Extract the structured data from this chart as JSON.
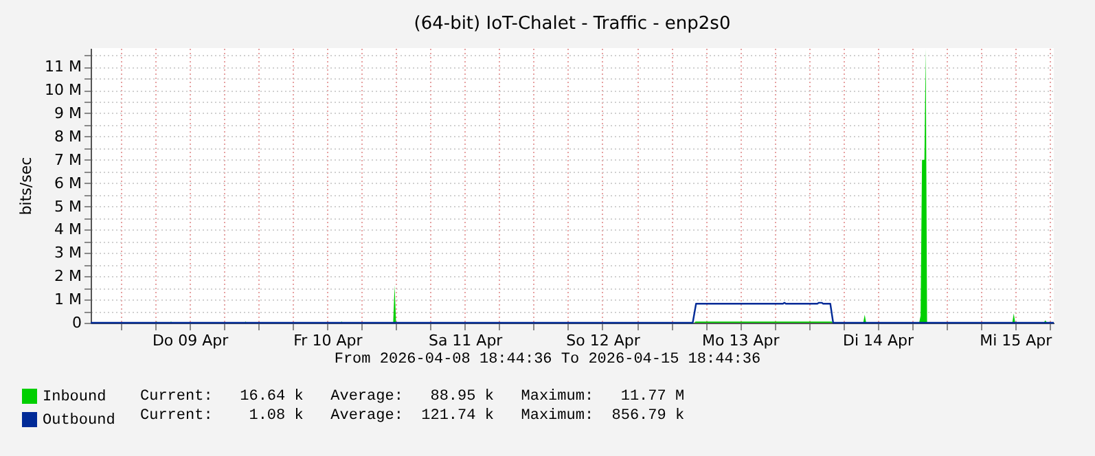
{
  "chart_data": {
    "type": "area",
    "title": "(64-bit)  IoT-Chalet - Traffic - enp2s0",
    "ylabel": "bits/sec",
    "annotations": [
      "From 2026-04-08 18:44:36 To 2026-04-15 18:44:36",
      "Current:   16.64 k   Average:   88.95 k   Maximum:   11.77 M",
      "Current:    1.08 k   Average:  121.74 k   Maximum:  856.79 k"
    ],
    "xlim": [
      "2026-04-08T18:44",
      "2026-04-15T18:44"
    ],
    "xticks": [
      {
        "value": "2026-04-09T00:00",
        "label": null
      },
      {
        "value": "2026-04-09T06:00",
        "label": null
      },
      {
        "value": "2026-04-09T12:00",
        "label": "Do 09 Apr"
      },
      {
        "value": "2026-04-09T18:00",
        "label": null
      },
      {
        "value": "2026-04-10T00:00",
        "label": null
      },
      {
        "value": "2026-04-10T06:00",
        "label": null
      },
      {
        "value": "2026-04-10T12:00",
        "label": "Fr 10 Apr"
      },
      {
        "value": "2026-04-10T18:00",
        "label": null
      },
      {
        "value": "2026-04-11T00:00",
        "label": null
      },
      {
        "value": "2026-04-11T06:00",
        "label": null
      },
      {
        "value": "2026-04-11T12:00",
        "label": "Sa 11 Apr"
      },
      {
        "value": "2026-04-11T18:00",
        "label": null
      },
      {
        "value": "2026-04-12T00:00",
        "label": null
      },
      {
        "value": "2026-04-12T06:00",
        "label": null
      },
      {
        "value": "2026-04-12T12:00",
        "label": "So 12 Apr"
      },
      {
        "value": "2026-04-12T18:00",
        "label": null
      },
      {
        "value": "2026-04-13T00:00",
        "label": null
      },
      {
        "value": "2026-04-13T06:00",
        "label": null
      },
      {
        "value": "2026-04-13T12:00",
        "label": "Mo 13 Apr"
      },
      {
        "value": "2026-04-13T18:00",
        "label": null
      },
      {
        "value": "2026-04-14T00:00",
        "label": null
      },
      {
        "value": "2026-04-14T06:00",
        "label": null
      },
      {
        "value": "2026-04-14T12:00",
        "label": "Di 14 Apr"
      },
      {
        "value": "2026-04-14T18:00",
        "label": null
      },
      {
        "value": "2026-04-15T00:00",
        "label": null
      },
      {
        "value": "2026-04-15T06:00",
        "label": null
      },
      {
        "value": "2026-04-15T12:00",
        "label": "Mi 15 Apr"
      },
      {
        "value": "2026-04-15T18:00",
        "label": null
      }
    ],
    "ylim": [
      0,
      11800000
    ],
    "yticks": [
      {
        "value": 0,
        "label": "0"
      },
      {
        "value": 500000,
        "label": null
      },
      {
        "value": 1000000,
        "label": "1 M"
      },
      {
        "value": 1500000,
        "label": null
      },
      {
        "value": 2000000,
        "label": "2 M"
      },
      {
        "value": 2500000,
        "label": null
      },
      {
        "value": 3000000,
        "label": "3 M"
      },
      {
        "value": 3500000,
        "label": null
      },
      {
        "value": 4000000,
        "label": "4 M"
      },
      {
        "value": 4500000,
        "label": null
      },
      {
        "value": 5000000,
        "label": "5 M"
      },
      {
        "value": 5500000,
        "label": null
      },
      {
        "value": 6000000,
        "label": "6 M"
      },
      {
        "value": 6500000,
        "label": null
      },
      {
        "value": 7000000,
        "label": "7 M"
      },
      {
        "value": 7500000,
        "label": null
      },
      {
        "value": 8000000,
        "label": "8 M"
      },
      {
        "value": 8500000,
        "label": null
      },
      {
        "value": 9000000,
        "label": "9 M"
      },
      {
        "value": 9500000,
        "label": null
      },
      {
        "value": 10000000,
        "label": "10 M"
      },
      {
        "value": 10500000,
        "label": null
      },
      {
        "value": 11000000,
        "label": "11 M"
      },
      {
        "value": 11500000,
        "label": null
      }
    ],
    "grid": true,
    "legend": "bottom left",
    "series": [
      {
        "name": "Inbound",
        "color": "#00cf00",
        "x": [
          "2026-04-08T18:44",
          "2026-04-09T06:00",
          "2026-04-09T06:15",
          "2026-04-09T06:30",
          "2026-04-09T08:30",
          "2026-04-09T08:45",
          "2026-04-09T09:00",
          "2026-04-09T21:30",
          "2026-04-09T21:45",
          "2026-04-09T22:00",
          "2026-04-10T14:15",
          "2026-04-10T14:30",
          "2026-04-10T14:45",
          "2026-04-10T23:30",
          "2026-04-10T23:45",
          "2026-04-11T00:00",
          "2026-04-13T04:00",
          "2026-04-13T04:15",
          "2026-04-14T04:00",
          "2026-04-14T04:15",
          "2026-04-14T09:30",
          "2026-04-14T09:45",
          "2026-04-14T10:00",
          "2026-04-14T19:15",
          "2026-04-14T19:30",
          "2026-04-14T19:45",
          "2026-04-14T20:10",
          "2026-04-14T20:24",
          "2026-04-14T20:38",
          "2026-04-15T11:30",
          "2026-04-15T11:45",
          "2026-04-15T12:00",
          "2026-04-15T17:00",
          "2026-04-15T17:15",
          "2026-04-15T17:30",
          "2026-04-15T18:44"
        ],
        "values": [
          0,
          0,
          50000,
          0,
          0,
          50000,
          0,
          0,
          50000,
          0,
          0,
          50000,
          0,
          0,
          1600000,
          0,
          0,
          50000,
          50000,
          0,
          0,
          350000,
          0,
          0,
          300000,
          7000000,
          7000000,
          11770000,
          0,
          0,
          400000,
          0,
          0,
          100000,
          20000,
          20000
        ]
      },
      {
        "name": "Outbound",
        "type": "line",
        "color": "#002a97",
        "x": [
          "2026-04-08T18:44",
          "2026-04-13T03:45",
          "2026-04-13T04:20",
          "2026-04-13T19:30",
          "2026-04-13T19:45",
          "2026-04-13T20:00",
          "2026-04-14T01:30",
          "2026-04-14T01:45",
          "2026-04-14T02:15",
          "2026-04-14T02:30",
          "2026-04-14T03:45",
          "2026-04-14T04:15",
          "2026-04-15T18:44"
        ],
        "values": [
          0,
          0,
          820000,
          820000,
          860000,
          820000,
          820000,
          860000,
          860000,
          820000,
          820000,
          0,
          0
        ]
      }
    ]
  }
}
